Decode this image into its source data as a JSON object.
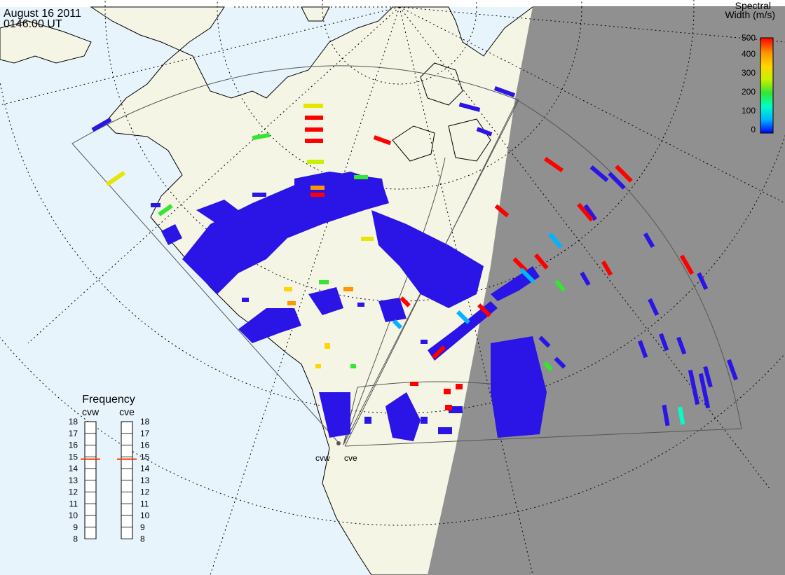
{
  "header": {
    "date": "August 16 2011",
    "time": "0146:00 UT"
  },
  "colorbar": {
    "title_line1": "Spectral",
    "title_line2": "Width (m/s)",
    "ticks": [
      "500",
      "400",
      "300",
      "200",
      "100",
      "0"
    ],
    "colors": [
      "#0000ff",
      "#00b4ff",
      "#00ffc8",
      "#32e632",
      "#c8f000",
      "#ffd700",
      "#ff9600",
      "#ff0000"
    ]
  },
  "frequency_panel": {
    "title": "Frequency",
    "radars": [
      {
        "label": "cvw",
        "freq_mhz": 14.8
      },
      {
        "label": "cve",
        "freq_mhz": 14.8
      }
    ],
    "ticks": [
      "18",
      "17",
      "16",
      "15",
      "14",
      "13",
      "12",
      "11",
      "10",
      "9",
      "8"
    ],
    "range_mhz": [
      8,
      18
    ]
  },
  "stations": [
    {
      "label": "cvw"
    },
    {
      "label": "cve"
    }
  ],
  "colors": {
    "ocean": "#e8f4fc",
    "land": "#f5f5e6",
    "night": "#909090",
    "scatter_low": "#2a14e6",
    "marker": "#ff3300"
  }
}
